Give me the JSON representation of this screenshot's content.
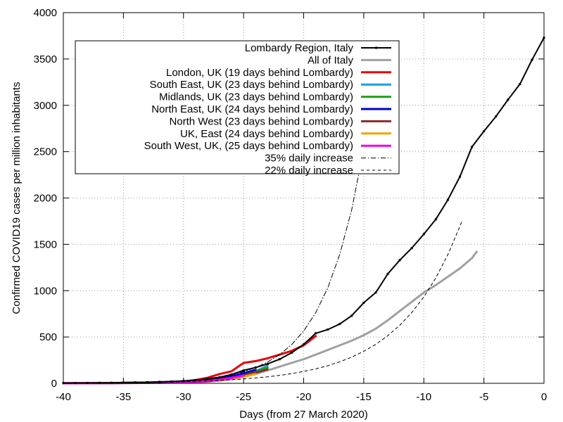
{
  "chart_data": {
    "type": "line",
    "xlabel": "Days (from 27 March 2020)",
    "ylabel": "Confirmed COVID19 cases per million inhabitants",
    "xlim": [
      -40,
      0
    ],
    "ylim": [
      0,
      4000
    ],
    "xticks": [
      -40,
      -35,
      -30,
      -25,
      -20,
      -15,
      -10,
      -5,
      0
    ],
    "yticks": [
      0,
      500,
      1000,
      1500,
      2000,
      2500,
      3000,
      3500,
      4000
    ],
    "grid": true,
    "legend_position": "top-left",
    "series": [
      {
        "name": "Lombardy Region, Italy",
        "color": "#000000",
        "style": "solid-points",
        "x": [
          -40,
          -39,
          -38,
          -37,
          -36,
          -35,
          -34,
          -33,
          -32,
          -31,
          -30,
          -29,
          -28,
          -27,
          -26,
          -25,
          -24,
          -23,
          -22,
          -21,
          -20,
          -19,
          -18,
          -17,
          -16,
          -15,
          -14,
          -13,
          -12,
          -11,
          -10,
          -9,
          -8,
          -7,
          -6,
          -5,
          -4,
          -3,
          -2,
          -1,
          0
        ],
        "y": [
          2,
          3,
          4,
          5,
          6,
          8,
          10,
          12,
          16,
          20,
          26,
          35,
          48,
          65,
          95,
          140,
          170,
          210,
          260,
          330,
          420,
          540,
          580,
          640,
          730,
          870,
          980,
          1180,
          1330,
          1460,
          1610,
          1770,
          1980,
          2230,
          2550,
          2720,
          2880,
          3060,
          3230,
          3490,
          3730
        ]
      },
      {
        "name": "All of Italy",
        "color": "#a0a0a0",
        "style": "thick",
        "x": [
          -40,
          -38,
          -36,
          -34,
          -32,
          -30,
          -29,
          -28,
          -27,
          -26,
          -25,
          -24,
          -23,
          -22,
          -21,
          -20,
          -19,
          -18,
          -17,
          -16,
          -15,
          -14,
          -13,
          -12,
          -11,
          -10,
          -9,
          -8,
          -7,
          -6,
          -5.6
        ],
        "y": [
          1,
          2,
          2,
          3,
          5,
          8,
          12,
          18,
          28,
          45,
          70,
          100,
          140,
          180,
          220,
          260,
          310,
          360,
          410,
          460,
          520,
          590,
          680,
          780,
          880,
          980,
          1060,
          1150,
          1240,
          1350,
          1420
        ]
      },
      {
        "name": "London, UK (19 days behind Lombardy)",
        "color": "#e8000b",
        "style": "thick",
        "x": [
          -40,
          -38,
          -36,
          -34,
          -32,
          -30,
          -29,
          -28,
          -27,
          -26,
          -25,
          -24,
          -23,
          -22,
          -21,
          -20,
          -19
        ],
        "y": [
          1,
          2,
          4,
          6,
          10,
          20,
          35,
          60,
          100,
          130,
          220,
          240,
          270,
          310,
          350,
          410,
          510
        ]
      },
      {
        "name": "South East, UK (23 days behind Lombardy)",
        "color": "#1a9fe0",
        "style": "thick",
        "x": [
          -40,
          -36,
          -32,
          -30,
          -28,
          -27,
          -26,
          -25,
          -24,
          -23
        ],
        "y": [
          1,
          3,
          8,
          15,
          30,
          45,
          70,
          100,
          130,
          190
        ]
      },
      {
        "name": "Midlands, UK (23 days behind Lombardy)",
        "color": "#19a319",
        "style": "thick",
        "x": [
          -40,
          -36,
          -32,
          -30,
          -28,
          -27,
          -26,
          -25,
          -24,
          -23
        ],
        "y": [
          1,
          3,
          8,
          15,
          28,
          42,
          62,
          95,
          125,
          170
        ]
      },
      {
        "name": "North East, UK (24 days behind Lombardy)",
        "color": "#0000cc",
        "style": "thick",
        "x": [
          -40,
          -36,
          -32,
          -30,
          -28,
          -27,
          -26,
          -25,
          -24
        ],
        "y": [
          1,
          3,
          8,
          15,
          30,
          50,
          75,
          110,
          145
        ]
      },
      {
        "name": "North West (23 days behind Lombardy)",
        "color": "#8b2a2a",
        "style": "thick",
        "x": [
          -40,
          -36,
          -32,
          -30,
          -28,
          -27,
          -26,
          -25,
          -24,
          -23
        ],
        "y": [
          1,
          3,
          7,
          12,
          25,
          40,
          60,
          85,
          115,
          150
        ]
      },
      {
        "name": "UK, East (24 days behind Lombardy)",
        "color": "#f5a100",
        "style": "thick",
        "x": [
          -40,
          -36,
          -32,
          -30,
          -28,
          -27,
          -26,
          -25,
          -24
        ],
        "y": [
          1,
          2,
          5,
          10,
          20,
          32,
          50,
          72,
          100
        ]
      },
      {
        "name": "South West, UK, (25 days behind Lombardy)",
        "color": "#ee00ee",
        "style": "thick",
        "x": [
          -40,
          -36,
          -32,
          -30,
          -28,
          -27,
          -26,
          -25
        ],
        "y": [
          1,
          2,
          6,
          12,
          22,
          38,
          58,
          85
        ]
      },
      {
        "name": "35% daily increase",
        "color": "#000000",
        "style": "dash-dot",
        "x": [
          -40,
          -38,
          -36,
          -34,
          -32,
          -30,
          -28,
          -27,
          -26,
          -25,
          -24,
          -23,
          -22,
          -21,
          -20,
          -19,
          -18,
          -17,
          -16,
          -15,
          -14.7
        ],
        "y": [
          1.4,
          2.6,
          4.6,
          8.4,
          15,
          28,
          51,
          69,
          93,
          126,
          170,
          230,
          310,
          418,
          565,
          762,
          1029,
          1389,
          1875,
          2532,
          2800
        ]
      },
      {
        "name": "22% daily increase",
        "color": "#000000",
        "style": "dashed",
        "x": [
          -40,
          -36,
          -32,
          -30,
          -28,
          -26,
          -25,
          -24,
          -23,
          -22,
          -21,
          -20,
          -19,
          -18,
          -17,
          -16,
          -15,
          -14,
          -13,
          -12,
          -11,
          -10,
          -9,
          -8,
          -7,
          -6.8
        ],
        "y": [
          2.4,
          5.3,
          11.8,
          17.6,
          26,
          39,
          47,
          58,
          70,
          86,
          105,
          128,
          156,
          190,
          232,
          283,
          345,
          421,
          514,
          627,
          765,
          933,
          1138,
          1389,
          1694,
          1760
        ]
      }
    ]
  }
}
